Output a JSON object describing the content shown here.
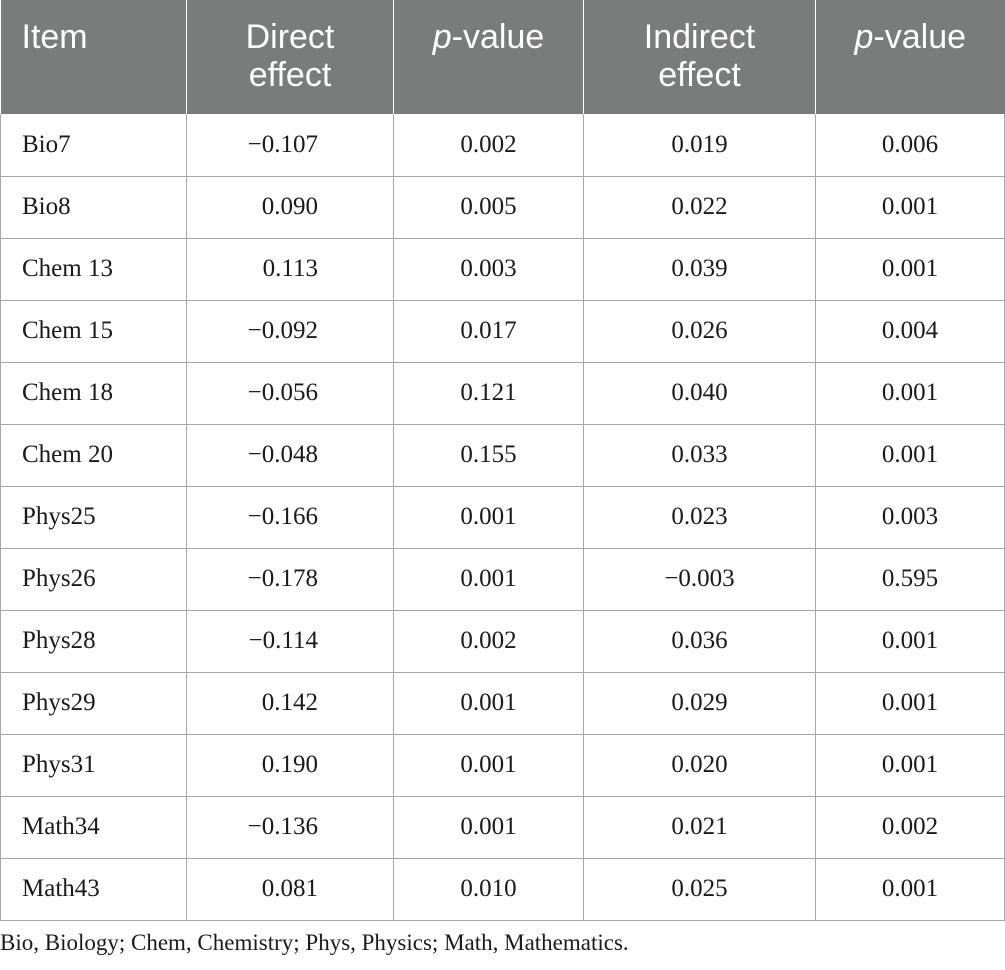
{
  "table": {
    "headers": [
      {
        "line1": "Item",
        "line2": "",
        "italic_prefix": ""
      },
      {
        "line1": "Direct",
        "line2": "effect",
        "italic_prefix": ""
      },
      {
        "line1": "-value",
        "line2": "",
        "italic_prefix": "p"
      },
      {
        "line1": "Indirect",
        "line2": "effect",
        "italic_prefix": ""
      },
      {
        "line1": "-value",
        "line2": "",
        "italic_prefix": "p"
      }
    ],
    "rows": [
      {
        "item": "Bio7",
        "direct": "−0.107",
        "p_direct": "0.002",
        "indirect": "0.019",
        "p_indirect": "0.006"
      },
      {
        "item": "Bio8",
        "direct": "0.090",
        "p_direct": "0.005",
        "indirect": "0.022",
        "p_indirect": "0.001"
      },
      {
        "item": "Chem 13",
        "direct": "0.113",
        "p_direct": "0.003",
        "indirect": "0.039",
        "p_indirect": "0.001"
      },
      {
        "item": "Chem 15",
        "direct": "−0.092",
        "p_direct": "0.017",
        "indirect": "0.026",
        "p_indirect": "0.004"
      },
      {
        "item": "Chem 18",
        "direct": "−0.056",
        "p_direct": "0.121",
        "indirect": "0.040",
        "p_indirect": "0.001"
      },
      {
        "item": "Chem 20",
        "direct": "−0.048",
        "p_direct": "0.155",
        "indirect": "0.033",
        "p_indirect": "0.001"
      },
      {
        "item": "Phys25",
        "direct": "−0.166",
        "p_direct": "0.001",
        "indirect": "0.023",
        "p_indirect": "0.003"
      },
      {
        "item": "Phys26",
        "direct": "−0.178",
        "p_direct": "0.001",
        "indirect": "−0.003",
        "p_indirect": "0.595"
      },
      {
        "item": "Phys28",
        "direct": "−0.114",
        "p_direct": "0.002",
        "indirect": "0.036",
        "p_indirect": "0.001"
      },
      {
        "item": "Phys29",
        "direct": "0.142",
        "p_direct": "0.001",
        "indirect": "0.029",
        "p_indirect": "0.001"
      },
      {
        "item": "Phys31",
        "direct": "0.190",
        "p_direct": "0.001",
        "indirect": "0.020",
        "p_indirect": "0.001"
      },
      {
        "item": "Math34",
        "direct": "−0.136",
        "p_direct": "0.001",
        "indirect": "0.021",
        "p_indirect": "0.002"
      },
      {
        "item": "Math43",
        "direct": "0.081",
        "p_direct": "0.010",
        "indirect": "0.025",
        "p_indirect": "0.001"
      }
    ]
  },
  "footnote": "Bio, Biology; Chem, Chemistry; Phys, Physics; Math, Mathematics.",
  "colors": {
    "header_bg": "#7a7b7b",
    "header_text": "#ffffff",
    "grid_line": "#a7a7a7"
  }
}
